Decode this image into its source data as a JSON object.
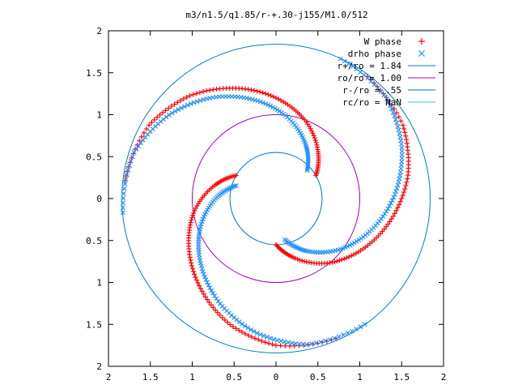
{
  "chart_data": {
    "type": "scatter",
    "title": "m3/n1.5/q1.85/r-+.30-j155/M1.0/512",
    "xlabel": "",
    "ylabel": "",
    "xlim": [
      -2,
      2
    ],
    "ylim": [
      -2,
      2
    ],
    "x_tick_labels": [
      "2",
      "1.5",
      "1",
      "0.5",
      "0",
      "0.5",
      "1",
      "1.5",
      "2"
    ],
    "y_tick_labels": [
      "2",
      "1.5",
      "1",
      "0.5",
      "0",
      "0.5",
      "1",
      "1.5",
      "2"
    ],
    "grid": false,
    "legend_position": "top-right",
    "legend": [
      {
        "label": "W phase",
        "kind": "point",
        "marker": "plus",
        "color": "#ff0000"
      },
      {
        "label": "drho phase",
        "kind": "point",
        "marker": "cross",
        "color": "#1e90ff"
      },
      {
        "label": "r+/ro = 1.84",
        "kind": "line",
        "color": "#0080c0"
      },
      {
        "label": "ro/ro = 1.00",
        "kind": "line",
        "color": "#a000c0"
      },
      {
        "label": "r-/ro = .55",
        "kind": "line",
        "color": "#0070c0"
      },
      {
        "label": "rc/ro = NaN",
        "kind": "line",
        "color": "#40c0d0"
      }
    ],
    "circles": [
      {
        "name": "r+/ro = 1.84",
        "radius": 1.84,
        "color": "#0080c0"
      },
      {
        "name": "ro/ro = 1.00",
        "radius": 1.0,
        "color": "#a000c0"
      },
      {
        "name": "r-/ro = .55",
        "radius": 0.55,
        "color": "#0070c0"
      }
    ],
    "series": [
      {
        "name": "W phase",
        "marker": "plus",
        "color": "#ff0000",
        "arms": [
          {
            "r": [
              0.55,
              0.75,
              1.0,
              1.2,
              1.4,
              1.6,
              1.75,
              1.82
            ],
            "theta_deg": [
              30,
              48,
              70,
              90,
              110,
              130,
              150,
              175
            ]
          },
          {
            "r": [
              0.55,
              0.75,
              1.0,
              1.2,
              1.4,
              1.6,
              1.75,
              1.82
            ],
            "theta_deg": [
              150,
              168,
              190,
              210,
              230,
              250,
              270,
              295
            ]
          },
          {
            "r": [
              0.55,
              0.75,
              1.0,
              1.2,
              1.4,
              1.6,
              1.75,
              1.82
            ],
            "theta_deg": [
              270,
              288,
              310,
              330,
              350,
              370,
              390,
              415
            ]
          }
        ]
      },
      {
        "name": "drho phase",
        "marker": "cross",
        "color": "#1e90ff",
        "arms": [
          {
            "r": [
              0.5,
              0.72,
              0.98,
              1.2,
              1.42,
              1.62,
              1.78,
              1.84
            ],
            "theta_deg": [
              42,
              60,
              82,
              102,
              122,
              142,
              162,
              187
            ]
          },
          {
            "r": [
              0.5,
              0.72,
              0.98,
              1.2,
              1.42,
              1.62,
              1.78,
              1.84
            ],
            "theta_deg": [
              162,
              180,
              202,
              222,
              242,
              262,
              282,
              307
            ]
          },
          {
            "r": [
              0.5,
              0.72,
              0.98,
              1.2,
              1.42,
              1.62,
              1.78,
              1.84
            ],
            "theta_deg": [
              282,
              300,
              322,
              342,
              362,
              382,
              402,
              427
            ]
          }
        ]
      }
    ]
  }
}
